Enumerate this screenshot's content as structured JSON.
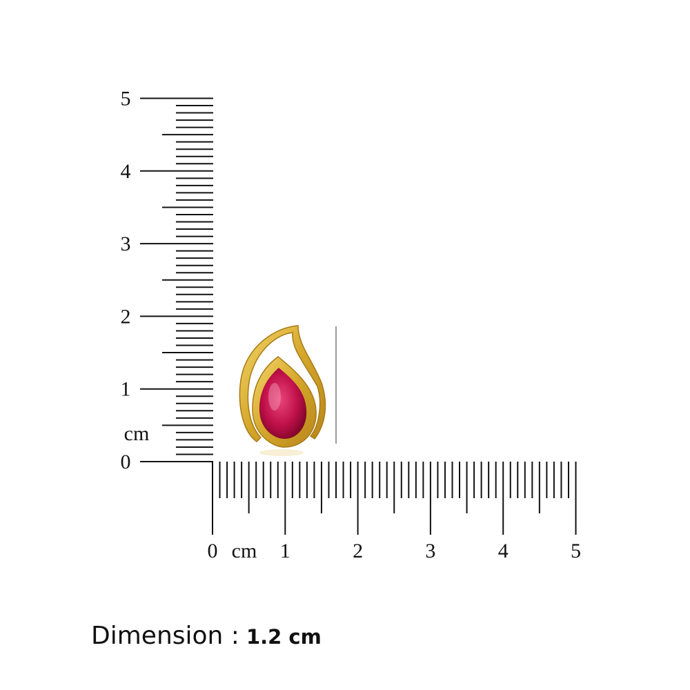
{
  "vertical_ruler": {
    "ticks": [
      0,
      1,
      2,
      3,
      4,
      5
    ],
    "unit": "cm"
  },
  "horizontal_ruler": {
    "ticks": [
      0,
      1,
      2,
      3,
      4,
      5
    ],
    "unit": "cm"
  },
  "dimension": {
    "label": "Dimension :",
    "value": "1.2 cm"
  }
}
